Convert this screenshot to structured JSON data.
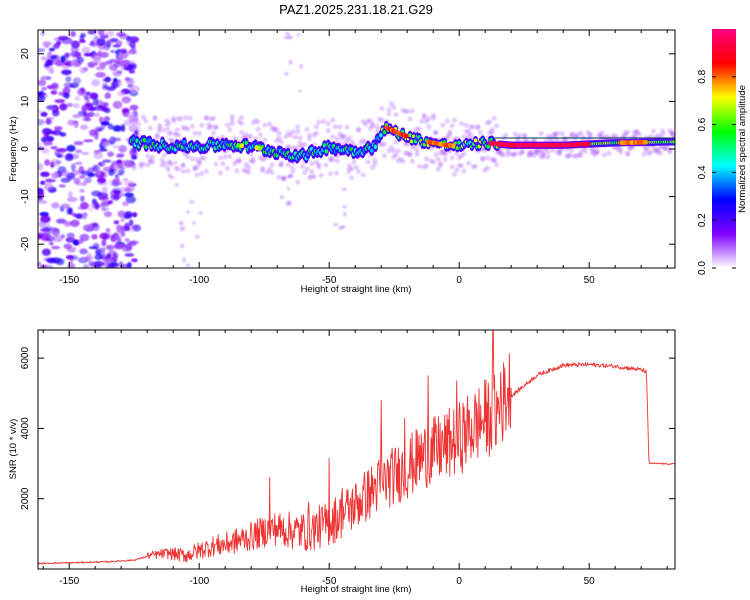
{
  "title": "PAZ1.2025.231.18.21.G29",
  "chart_data": [
    {
      "type": "heatmap",
      "title": "PAZ1.2025.231.18.21.G29",
      "xlabel": "Height of straight line (km)",
      "ylabel": "Frequency (Hz)",
      "xlim": [
        -162,
        83
      ],
      "ylim": [
        -25,
        25
      ],
      "xticks": [
        -150,
        -100,
        -50,
        0,
        50
      ],
      "yticks": [
        -20,
        -10,
        0,
        10,
        20
      ],
      "colorbar": {
        "label": "Normalized spectral amplitude",
        "range": [
          0.0,
          1.0
        ],
        "ticks": [
          "0.0",
          "0.2",
          "0.4",
          "0.6",
          "0.8"
        ],
        "colormap": [
          "#ffffff",
          "#7f00ff",
          "#0000ff",
          "#00ffff",
          "#00ff00",
          "#ffff00",
          "#ff0000",
          "#ff0080"
        ]
      },
      "ridge": {
        "x": [
          -126,
          -115,
          -100,
          -90,
          -80,
          -70,
          -60,
          -50,
          -40,
          -33,
          -28,
          -22,
          -15,
          -5,
          0,
          10,
          20,
          40,
          60,
          83
        ],
        "freq": [
          1.5,
          0.8,
          0.5,
          1.0,
          0.5,
          -0.6,
          -1.5,
          0.5,
          -0.5,
          0.5,
          4.5,
          3.0,
          1.8,
          0.8,
          0.6,
          1.3,
          0.8,
          0.8,
          1.3,
          1.5
        ]
      }
    },
    {
      "type": "line",
      "xlabel": "Height of straight line (km)",
      "ylabel": "SNR (10 * v/v)",
      "xlim": [
        -162,
        83
      ],
      "ylim": [
        0,
        6800
      ],
      "xticks": [
        -150,
        -100,
        -50,
        0,
        50
      ],
      "yticks": [
        2000,
        4000,
        6000
      ],
      "series": [
        {
          "name": "SNR",
          "color": "#ee3333",
          "x": [
            -162,
            -150,
            -135,
            -125,
            -120,
            -112,
            -105,
            -100,
            -95,
            -90,
            -85,
            -80,
            -76,
            -73,
            -70,
            -66,
            -62,
            -58,
            -55,
            -50,
            -45,
            -40,
            -35,
            -30,
            -25,
            -20,
            -15,
            -10,
            -5,
            0,
            5,
            10,
            15,
            20,
            30,
            40,
            50,
            60,
            70,
            72,
            73,
            83
          ],
          "values": [
            150,
            170,
            200,
            250,
            350,
            400,
            320,
            450,
            560,
            600,
            700,
            800,
            900,
            1000,
            1000,
            950,
            900,
            900,
            980,
            1100,
            1350,
            1600,
            1900,
            2200,
            2400,
            2600,
            2900,
            3050,
            3200,
            3400,
            3700,
            3950,
            4100,
            4900,
            5500,
            5780,
            5800,
            5750,
            5650,
            5600,
            3000,
            2980
          ]
        }
      ]
    }
  ]
}
